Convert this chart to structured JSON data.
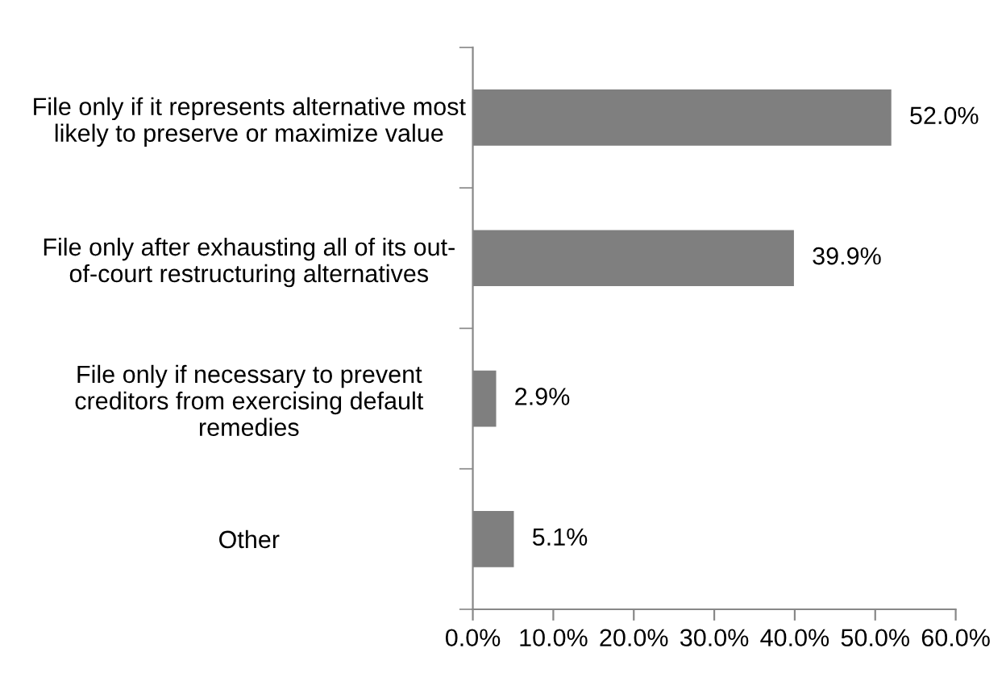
{
  "chart_data": {
    "type": "bar",
    "orientation": "horizontal",
    "categories": [
      "File only if it represents alternative most\nlikely to preserve or maximize value",
      "File only after exhausting all of its out-\nof-court restructuring alternatives",
      "File only if necessary to prevent\ncreditors from exercising default\nremedies",
      "Other"
    ],
    "values": [
      52.0,
      39.9,
      2.9,
      5.1
    ],
    "value_labels": [
      "52.0%",
      "39.9%",
      "2.9%",
      "5.1%"
    ],
    "color": "#7f7f7f",
    "xlim": [
      0,
      60
    ],
    "xticks": [
      {
        "value": 0,
        "label": "0.0%"
      },
      {
        "value": 10,
        "label": "10.0%"
      },
      {
        "value": 20,
        "label": "20.0%"
      },
      {
        "value": 30,
        "label": "30.0%"
      },
      {
        "value": 40,
        "label": "40.0%"
      },
      {
        "value": 50,
        "label": "50.0%"
      },
      {
        "value": 60,
        "label": "60.0%"
      }
    ],
    "grid": false,
    "legend": false
  }
}
